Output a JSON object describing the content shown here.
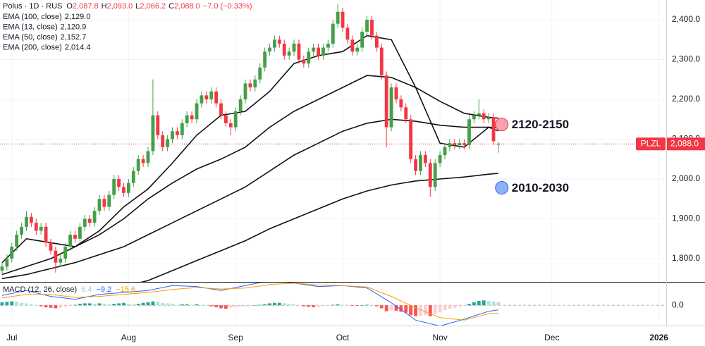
{
  "chart_data": {
    "type": "candlestick",
    "title": "Polus · 1D · RUS",
    "header_values": [
      {
        "key": "O",
        "value": 2087.8,
        "label": "2,087.8"
      },
      {
        "key": "H",
        "value": 2093.0,
        "label": "2,093.0"
      },
      {
        "key": "L",
        "value": 2066.2,
        "label": "2,066.2"
      },
      {
        "key": "C",
        "value": 2088.0,
        "label": "2,088.0"
      }
    ],
    "change": {
      "value": -7.0,
      "pct": -0.33,
      "label": "−7.0 (−0.33%)"
    },
    "up_color": "#43a047",
    "down_color": "#f23645",
    "candles": {
      "open": [
        1770,
        1780,
        1800,
        1830,
        1860,
        1880,
        1905,
        1890,
        1870,
        1880,
        1840,
        1820,
        1790,
        1800,
        1830,
        1860,
        1850,
        1880,
        1900,
        1890,
        1920,
        1950,
        1930,
        1960,
        2000,
        1980,
        1965,
        1990,
        2020,
        2050,
        2040,
        2070,
        2160,
        2110,
        2080,
        2100,
        2120,
        2110,
        2140,
        2160,
        2150,
        2190,
        2210,
        2200,
        2220,
        2190,
        2160,
        2140,
        2130,
        2170,
        2200,
        2240,
        2230,
        2250,
        2280,
        2320,
        2330,
        2350,
        2340,
        2310,
        2320,
        2340,
        2300,
        2290,
        2320,
        2330,
        2310,
        2330,
        2340,
        2390,
        2420,
        2380,
        2350,
        2320,
        2330,
        2370,
        2400,
        2360,
        2330,
        2260,
        2130,
        2230,
        2200,
        2180,
        2150,
        2050,
        2020,
        2060,
        2040,
        1980,
        2040,
        2060,
        2080,
        2090,
        2085,
        2090,
        2085,
        2150,
        2160,
        2165,
        2150,
        2155,
        2087.8
      ],
      "high": [
        1790,
        1810,
        1840,
        1870,
        1890,
        1920,
        1915,
        1900,
        1890,
        1890,
        1850,
        1830,
        1810,
        1840,
        1870,
        1870,
        1890,
        1910,
        1910,
        1930,
        1960,
        1960,
        1970,
        2010,
        2010,
        1990,
        2000,
        2030,
        2060,
        2060,
        2080,
        2250,
        2170,
        2120,
        2110,
        2130,
        2130,
        2150,
        2170,
        2170,
        2200,
        2220,
        2220,
        2230,
        2230,
        2200,
        2170,
        2150,
        2180,
        2210,
        2250,
        2250,
        2260,
        2290,
        2330,
        2340,
        2360,
        2360,
        2350,
        2330,
        2350,
        2350,
        2310,
        2330,
        2340,
        2340,
        2340,
        2350,
        2400,
        2440,
        2430,
        2390,
        2360,
        2340,
        2380,
        2410,
        2410,
        2370,
        2340,
        2270,
        2240,
        2240,
        2210,
        2190,
        2160,
        2060,
        2070,
        2070,
        2050,
        2050,
        2070,
        2090,
        2100,
        2100,
        2100,
        2100,
        2160,
        2170,
        2200,
        2175,
        2165,
        2165,
        2093
      ],
      "low": [
        1760,
        1770,
        1790,
        1820,
        1850,
        1870,
        1880,
        1860,
        1860,
        1830,
        1810,
        1765,
        1780,
        1790,
        1820,
        1840,
        1840,
        1870,
        1880,
        1880,
        1910,
        1920,
        1920,
        1950,
        1970,
        1955,
        1955,
        1980,
        2010,
        2030,
        2030,
        2060,
        2100,
        2070,
        2070,
        2090,
        2100,
        2100,
        2130,
        2140,
        2140,
        2180,
        2190,
        2190,
        2180,
        2150,
        2130,
        2110,
        2120,
        2160,
        2190,
        2220,
        2220,
        2240,
        2270,
        2310,
        2320,
        2330,
        2300,
        2300,
        2310,
        2290,
        2280,
        2280,
        2310,
        2300,
        2300,
        2320,
        2330,
        2380,
        2370,
        2340,
        2310,
        2310,
        2320,
        2360,
        2350,
        2320,
        2250,
        2080,
        2120,
        2190,
        2170,
        2140,
        2040,
        2010,
        2010,
        2030,
        1955,
        1970,
        2030,
        2050,
        2070,
        2075,
        2075,
        2075,
        2075,
        2140,
        2150,
        2140,
        2140,
        2085,
        2066.2
      ],
      "close": [
        1780,
        1800,
        1830,
        1860,
        1880,
        1905,
        1890,
        1870,
        1880,
        1840,
        1820,
        1790,
        1800,
        1830,
        1860,
        1850,
        1880,
        1900,
        1890,
        1920,
        1950,
        1930,
        1960,
        2000,
        1980,
        1965,
        1990,
        2020,
        2050,
        2040,
        2070,
        2160,
        2110,
        2080,
        2100,
        2120,
        2110,
        2140,
        2160,
        2150,
        2190,
        2210,
        2200,
        2220,
        2190,
        2160,
        2140,
        2130,
        2170,
        2200,
        2240,
        2230,
        2250,
        2280,
        2320,
        2330,
        2350,
        2340,
        2310,
        2320,
        2340,
        2300,
        2290,
        2320,
        2330,
        2310,
        2330,
        2340,
        2390,
        2420,
        2380,
        2350,
        2320,
        2330,
        2370,
        2400,
        2360,
        2330,
        2260,
        2130,
        2230,
        2200,
        2180,
        2150,
        2050,
        2020,
        2060,
        2040,
        1980,
        2040,
        2060,
        2080,
        2090,
        2085,
        2090,
        2085,
        2150,
        2160,
        2165,
        2150,
        2155,
        2095,
        2088
      ]
    },
    "xlim": [
      -0.43,
      136.5
    ],
    "xticks": [
      {
        "value": 2,
        "label": "Jul"
      },
      {
        "value": 26,
        "label": "Aug"
      },
      {
        "value": 48,
        "label": "Sep"
      },
      {
        "value": 70,
        "label": "Oct"
      },
      {
        "value": 90,
        "label": "Nov"
      },
      {
        "value": 113,
        "label": "Dec"
      },
      {
        "value": 135,
        "label": "2026"
      }
    ],
    "ylim": [
      1741.6,
      2449.6
    ],
    "yticks": [
      {
        "value": 1800,
        "label": "1,800.0"
      },
      {
        "value": 1900,
        "label": "1,900.0"
      },
      {
        "value": 2000,
        "label": "2,000.0"
      },
      {
        "value": 2100,
        "label": "2,100.0"
      },
      {
        "value": 2200,
        "label": "2,200.0"
      },
      {
        "value": 2300,
        "label": "2,300.0"
      },
      {
        "value": 2400,
        "label": "2,400.0"
      }
    ],
    "grid": true,
    "ema": [
      {
        "name": "EMA (100, close)",
        "color": "#111111",
        "legend_value": {
          "value": 2129.0,
          "label": "2,129.0"
        },
        "x": [
          0,
          5,
          10,
          15,
          20,
          25,
          30,
          35,
          40,
          45,
          50,
          55,
          60,
          65,
          70,
          75,
          80,
          85,
          90,
          95,
          100,
          102
        ],
        "values": [
          1750,
          1760,
          1775,
          1790,
          1810,
          1830,
          1860,
          1890,
          1920,
          1950,
          1980,
          2020,
          2060,
          2090,
          2120,
          2140,
          2150,
          2145,
          2135,
          2130,
          2130,
          2129.0
        ]
      },
      {
        "name": "EMA (13, close)",
        "color": "#111111",
        "legend_value": {
          "value": 2120.9,
          "label": "2,120.9"
        },
        "x": [
          0,
          5,
          10,
          15,
          20,
          25,
          30,
          35,
          40,
          45,
          50,
          55,
          60,
          65,
          70,
          75,
          80,
          85,
          90,
          95,
          100,
          102
        ],
        "values": [
          1790,
          1850,
          1840,
          1830,
          1870,
          1930,
          1975,
          2040,
          2110,
          2160,
          2170,
          2220,
          2290,
          2310,
          2320,
          2360,
          2350,
          2230,
          2090,
          2080,
          2130,
          2120.9
        ]
      },
      {
        "name": "EMA (50, close)",
        "color": "#111111",
        "legend_value": {
          "value": 2152.7,
          "label": "2,152.7"
        },
        "x": [
          0,
          5,
          10,
          15,
          20,
          25,
          30,
          35,
          40,
          45,
          50,
          55,
          60,
          65,
          70,
          75,
          80,
          85,
          90,
          95,
          100,
          102
        ],
        "values": [
          1760,
          1780,
          1800,
          1830,
          1860,
          1900,
          1950,
          1990,
          2025,
          2050,
          2080,
          2130,
          2170,
          2200,
          2230,
          2260,
          2255,
          2230,
          2195,
          2165,
          2155,
          2152.7
        ]
      },
      {
        "name": "EMA (200, close)",
        "color": "#111111",
        "legend_value": {
          "value": 2014.4,
          "label": "2,014.4"
        },
        "x": [
          20,
          25,
          30,
          35,
          40,
          45,
          50,
          55,
          60,
          65,
          70,
          75,
          80,
          85,
          90,
          95,
          100,
          102
        ],
        "values": [
          1715,
          1730,
          1745,
          1770,
          1795,
          1820,
          1845,
          1875,
          1900,
          1925,
          1950,
          1970,
          1985,
          1995,
          2000,
          2005,
          2012,
          2014.4
        ]
      }
    ],
    "last_price": {
      "symbol": "PLZL",
      "value": 2088.0,
      "label": "2,088.0",
      "color": "#f23645"
    },
    "annotations": [
      {
        "label": "2120-2150",
        "x": 102.7,
        "price": 2137,
        "color": "#f7a1ad",
        "stroke": "#f23645"
      },
      {
        "label": "2010-2030",
        "x": 102.7,
        "price": 1978,
        "color": "#8fb2f5",
        "stroke": "#2962ff"
      }
    ],
    "macd": {
      "name": "MACD (12, 26, close)",
      "ylim": [
        -41,
        46
      ],
      "yticks": [
        {
          "value": 0,
          "label": "0.0"
        }
      ],
      "histogram": {
        "legend_value": {
          "value": 6.4,
          "label": "6.4"
        },
        "colors": {
          "up_strong": "#26a69a",
          "up_weak": "#b2dfdb",
          "down_strong": "#ff5252",
          "down_weak": "#ffcdd2"
        },
        "values": [
          6,
          7,
          8,
          7,
          5,
          4,
          2,
          0,
          -2,
          -4,
          -5,
          -6,
          -5,
          -3,
          -1,
          1,
          3,
          4,
          4,
          3,
          4,
          3,
          2,
          3,
          4,
          5,
          3,
          2,
          3,
          5,
          6,
          8,
          7,
          5,
          4,
          3,
          1,
          2,
          2,
          1,
          2,
          1,
          0,
          -2,
          -4,
          -6,
          -7,
          -5,
          -4,
          -3,
          -2,
          -1,
          0,
          1,
          2,
          4,
          5,
          5,
          4,
          3,
          2,
          0,
          -2,
          -3,
          -4,
          -3,
          -2,
          -1,
          1,
          2,
          1,
          0,
          -1,
          -1,
          0,
          1,
          0,
          -2,
          -6,
          -12,
          -10,
          -11,
          -13,
          -15,
          -20,
          -22,
          -21,
          -20,
          -22,
          -18,
          -14,
          -10,
          -7,
          -5,
          -3,
          -1,
          3,
          6,
          9,
          10,
          9,
          8,
          6.4
        ]
      },
      "macd_line": {
        "color": "#2962ff",
        "legend_value": {
          "value": -9.2,
          "label": "−9.2"
        },
        "x": [
          0,
          5,
          10,
          15,
          20,
          25,
          30,
          35,
          40,
          45,
          50,
          55,
          60,
          65,
          70,
          75,
          80,
          85,
          90,
          95,
          100,
          102
        ],
        "values": [
          20,
          30,
          18,
          12,
          22,
          26,
          30,
          40,
          38,
          30,
          40,
          50,
          45,
          38,
          40,
          35,
          5,
          -30,
          -42,
          -28,
          -12,
          -9.2
        ]
      },
      "signal_line": {
        "color": "#ff9800",
        "legend_value": {
          "value": -15.6,
          "label": "−15.6"
        },
        "x": [
          0,
          5,
          10,
          15,
          20,
          25,
          30,
          35,
          40,
          45,
          50,
          55,
          60,
          65,
          70,
          75,
          80,
          85,
          90,
          95,
          100,
          102
        ],
        "values": [
          15,
          22,
          22,
          16,
          18,
          22,
          26,
          32,
          36,
          33,
          35,
          42,
          45,
          41,
          40,
          37,
          18,
          -5,
          -25,
          -30,
          -17,
          -15.6
        ]
      }
    }
  }
}
